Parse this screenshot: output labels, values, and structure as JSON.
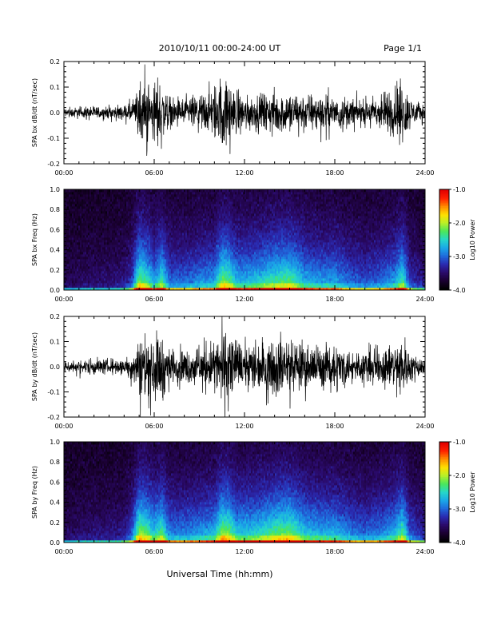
{
  "header": {
    "title": "2010/10/11   00:00-24:00 UT",
    "page": "Page 1/1"
  },
  "footer": {
    "xlabel": "Universal Time (hh:mm)"
  },
  "colors": {
    "trace": "#000000",
    "colormap": [
      "#000000",
      "#1a0030",
      "#2a0a6a",
      "#2a2ab0",
      "#1f6adc",
      "#1aa8e8",
      "#26d8c8",
      "#4ae65a",
      "#b8f028",
      "#ffe000",
      "#ff8c00",
      "#ff2000",
      "#e00000"
    ]
  },
  "chart_data": [
    {
      "type": "line",
      "ylabel": "SPA bx dB/dt (nT/sec)",
      "xlim": [
        0,
        24
      ],
      "ylim": [
        -0.2,
        0.2
      ],
      "yticks": [
        "0.2",
        "0.1",
        "0.0",
        "-0.1",
        "-0.2"
      ],
      "xticks": [
        "00:00",
        "06:00",
        "12:00",
        "18:00",
        "24:00"
      ],
      "series": [
        {
          "x": [
            0,
            1,
            2,
            3,
            4,
            4.8,
            5.0,
            5.5,
            6.0,
            6.5,
            7,
            8,
            9,
            10,
            10.5,
            11,
            11.5,
            12,
            13,
            14,
            15,
            16,
            17,
            18,
            19,
            20,
            21,
            22,
            22.5,
            23,
            24
          ],
          "amplitude": [
            0.03,
            0.03,
            0.035,
            0.035,
            0.04,
            0.08,
            0.2,
            0.2,
            0.15,
            0.18,
            0.08,
            0.08,
            0.1,
            0.15,
            0.2,
            0.2,
            0.12,
            0.09,
            0.1,
            0.12,
            0.12,
            0.1,
            0.1,
            0.1,
            0.08,
            0.07,
            0.1,
            0.15,
            0.2,
            0.08,
            0.05
          ]
        }
      ]
    },
    {
      "type": "heatmap",
      "ylabel": "SPA bx Freq (Hz)",
      "xlim": [
        0,
        24
      ],
      "ylim": [
        0,
        1.0
      ],
      "yticks": [
        "1.0",
        "0.8",
        "0.6",
        "0.4",
        "0.2",
        "0.0"
      ],
      "xticks": [
        "00:00",
        "06:00",
        "12:00",
        "18:00",
        "24:00"
      ],
      "colorbar": {
        "label": "Log10 Power",
        "range": [
          -4.0,
          -1.0
        ],
        "ticks": [
          "-1.0",
          "-2.0",
          "-3.0",
          "-4.0"
        ]
      },
      "activity": {
        "x": [
          0,
          1,
          2,
          3,
          4,
          4.5,
          5.0,
          5.5,
          6.0,
          6.5,
          7,
          8,
          9,
          10,
          10.5,
          11,
          11.5,
          12,
          13,
          14,
          15,
          16,
          17,
          18,
          19,
          20,
          21,
          22,
          22.5,
          23,
          24
        ],
        "level": [
          0.1,
          0.12,
          0.15,
          0.15,
          0.2,
          0.3,
          0.8,
          0.7,
          0.5,
          0.7,
          0.4,
          0.4,
          0.45,
          0.5,
          0.8,
          0.75,
          0.55,
          0.55,
          0.6,
          0.7,
          0.75,
          0.55,
          0.5,
          0.5,
          0.4,
          0.35,
          0.4,
          0.5,
          0.7,
          0.3,
          0.2
        ]
      }
    },
    {
      "type": "line",
      "ylabel": "SPA by dB/dt (nT/sec)",
      "xlim": [
        0,
        24
      ],
      "ylim": [
        -0.2,
        0.2
      ],
      "yticks": [
        "0.2",
        "0.1",
        "0.0",
        "-0.1",
        "-0.2"
      ],
      "xticks": [
        "00:00",
        "06:00",
        "12:00",
        "18:00",
        "24:00"
      ],
      "series": [
        {
          "x": [
            0,
            1,
            2,
            3,
            4,
            4.8,
            5.0,
            5.5,
            6.0,
            6.5,
            7,
            8,
            9,
            10,
            10.5,
            11,
            11.5,
            12,
            13,
            14,
            15,
            16,
            17,
            18,
            19,
            20,
            21,
            22,
            22.5,
            23,
            24
          ],
          "amplitude": [
            0.03,
            0.04,
            0.045,
            0.04,
            0.05,
            0.1,
            0.2,
            0.2,
            0.18,
            0.2,
            0.1,
            0.1,
            0.12,
            0.15,
            0.2,
            0.2,
            0.15,
            0.12,
            0.14,
            0.16,
            0.16,
            0.13,
            0.12,
            0.12,
            0.1,
            0.09,
            0.1,
            0.14,
            0.18,
            0.08,
            0.05
          ]
        }
      ]
    },
    {
      "type": "heatmap",
      "ylabel": "SPA by Freq (Hz)",
      "xlim": [
        0,
        24
      ],
      "ylim": [
        0,
        1.0
      ],
      "yticks": [
        "1.0",
        "0.8",
        "0.6",
        "0.4",
        "0.2",
        "0.0"
      ],
      "xticks": [
        "00:00",
        "06:00",
        "12:00",
        "18:00",
        "24:00"
      ],
      "colorbar": {
        "label": "Log10 Power",
        "range": [
          -4.0,
          -1.0
        ],
        "ticks": [
          "-1.0",
          "-2.0",
          "-3.0",
          "-4.0"
        ]
      },
      "activity": {
        "x": [
          0,
          1,
          2,
          3,
          4,
          4.5,
          5.0,
          5.5,
          6.0,
          6.5,
          7,
          8,
          9,
          10,
          10.5,
          11,
          11.5,
          12,
          13,
          14,
          15,
          16,
          17,
          18,
          19,
          20,
          21,
          22,
          22.5,
          23,
          24
        ],
        "level": [
          0.12,
          0.15,
          0.18,
          0.18,
          0.22,
          0.35,
          0.85,
          0.75,
          0.6,
          0.75,
          0.45,
          0.45,
          0.5,
          0.55,
          0.85,
          0.8,
          0.6,
          0.6,
          0.65,
          0.75,
          0.8,
          0.6,
          0.55,
          0.55,
          0.45,
          0.4,
          0.45,
          0.55,
          0.75,
          0.35,
          0.25
        ]
      }
    }
  ]
}
